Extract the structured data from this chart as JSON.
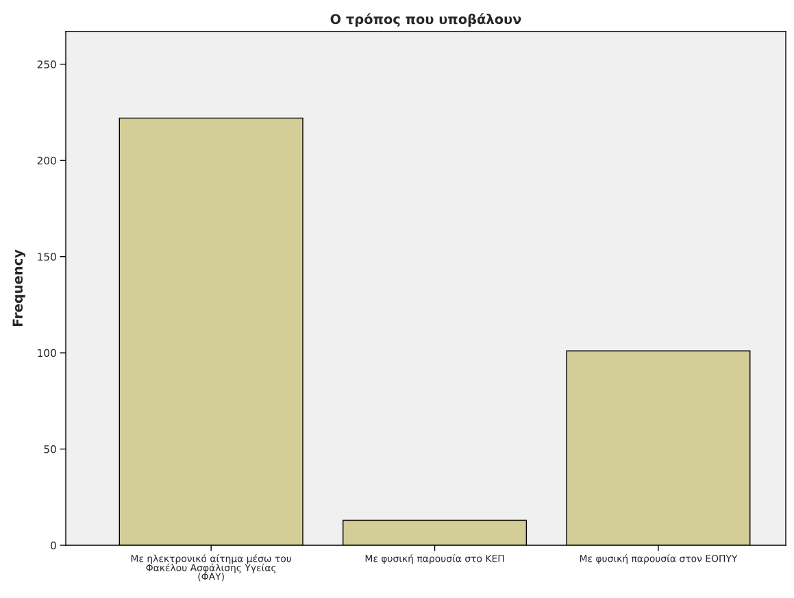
{
  "chart_data": {
    "type": "bar",
    "title": "Ο τρόπος που υποβάλουν",
    "ylabel": "Frequency",
    "categories": [
      "Με ηλεκτρονικό αίτημα μέσω του\nΦακέλου Ασφάλισης Υγείας\n(ΦΑΥ)",
      "Με φυσική παρουσία στο ΚΕΠ",
      "Με φυσική παρουσία στον ΕΟΠΥΥ"
    ],
    "values": [
      222,
      13,
      101
    ],
    "color": "#d3ce97",
    "ylim": [
      0,
      267
    ],
    "yticks": [
      0,
      50,
      100,
      150,
      200,
      250
    ],
    "grid": false
  }
}
